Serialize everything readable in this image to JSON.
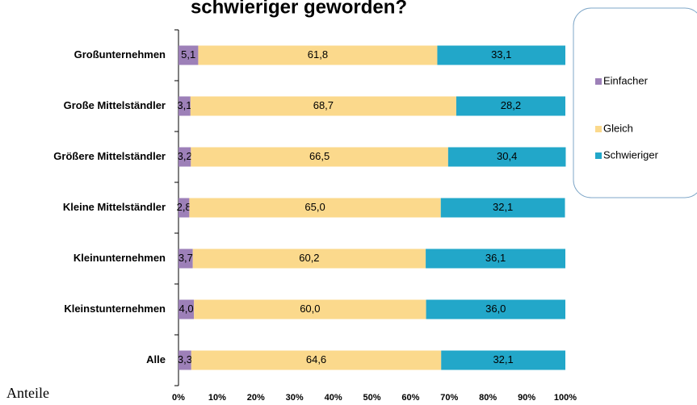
{
  "chart_data": {
    "type": "stacked_barh",
    "title": "schwieriger geworden?",
    "categories": [
      "Großunternehmen",
      "Große Mittelständler",
      "Größere Mittelständler",
      "Kleine Mittelständler",
      "Kleinunternehmen",
      "Kleinstunternehmen",
      "Alle"
    ],
    "series": [
      {
        "name": "Einfacher",
        "color": "#9d80b8",
        "values": [
          5.1,
          3.1,
          3.2,
          2.8,
          3.7,
          4.0,
          3.3
        ],
        "value_labels": [
          "5,1",
          "3,1",
          "3,2",
          "2,8",
          "3,7",
          "4,0",
          "3,3"
        ]
      },
      {
        "name": "Gleich",
        "color": "#fbd98c",
        "values": [
          61.8,
          68.7,
          66.5,
          65.0,
          60.2,
          60.0,
          64.6
        ],
        "value_labels": [
          "61,8",
          "68,7",
          "66,5",
          "65,0",
          "60,2",
          "60,0",
          "64,6"
        ]
      },
      {
        "name": "Schwieriger",
        "color": "#22a7c9",
        "values": [
          33.1,
          28.2,
          30.4,
          32.1,
          36.1,
          36.0,
          32.1
        ],
        "value_labels": [
          "33,1",
          "28,2",
          "30,4",
          "32,1",
          "36,1",
          "36,0",
          "32,1"
        ]
      }
    ],
    "xlim": [
      0,
      100
    ],
    "xticks": [
      {
        "value": 0,
        "label": "0%"
      },
      {
        "value": 10,
        "label": "10%"
      },
      {
        "value": 20,
        "label": "20%"
      },
      {
        "value": 30,
        "label": "30%"
      },
      {
        "value": 40,
        "label": "40%"
      },
      {
        "value": 50,
        "label": "50%"
      },
      {
        "value": 60,
        "label": "60%"
      },
      {
        "value": 70,
        "label": "70%"
      },
      {
        "value": 80,
        "label": "80%"
      },
      {
        "value": 90,
        "label": "90%"
      },
      {
        "value": 100,
        "label": "100%"
      }
    ],
    "legend": "right",
    "note": "Anteile"
  }
}
